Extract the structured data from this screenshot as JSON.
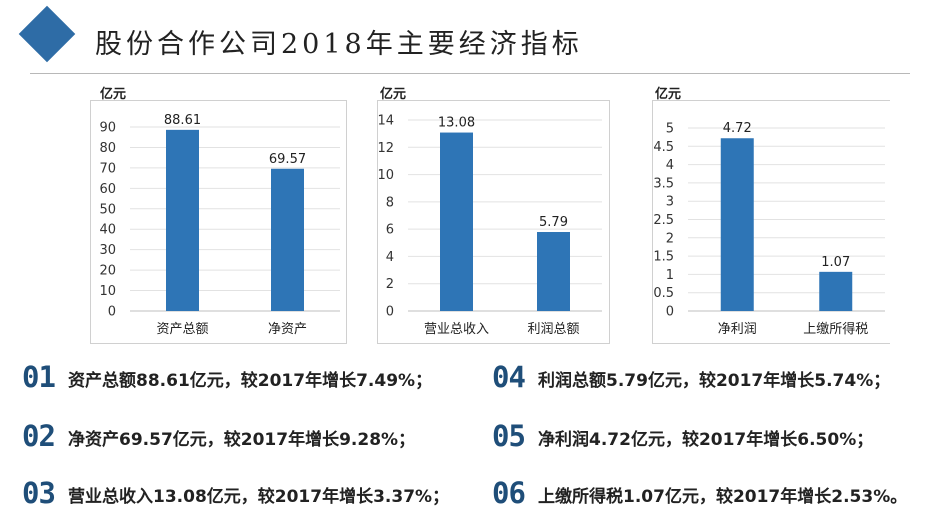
{
  "page": {
    "title": "股份合作公司2018年主要经济指标",
    "accent_color": "#2e6ca6",
    "number_color": "#1f4e79"
  },
  "chart_data": [
    {
      "type": "bar",
      "ylabel": "亿元",
      "categories": [
        "资产总额",
        "净资产"
      ],
      "values": [
        88.61,
        69.57
      ],
      "value_labels": [
        "88.61",
        "69.57"
      ],
      "ylim": [
        0,
        90
      ],
      "ticks": [
        0,
        10,
        20,
        30,
        40,
        50,
        60,
        70,
        80,
        90
      ],
      "tick_labels": [
        "0",
        "10",
        "20",
        "30",
        "40",
        "50",
        "60",
        "70",
        "80",
        "90"
      ],
      "bar_color": "#2e75b6",
      "grid": true
    },
    {
      "type": "bar",
      "ylabel": "亿元",
      "categories": [
        "营业总收入",
        "利润总额"
      ],
      "values": [
        13.08,
        5.79
      ],
      "value_labels": [
        "13.08",
        "5.79"
      ],
      "ylim": [
        0,
        14
      ],
      "ticks": [
        0,
        2,
        4,
        6,
        8,
        10,
        12,
        14
      ],
      "tick_labels": [
        "0",
        "2",
        "4",
        "6",
        "8",
        "10",
        "12",
        "14"
      ],
      "bar_color": "#2e75b6",
      "grid": true
    },
    {
      "type": "bar",
      "ylabel": "亿元",
      "categories": [
        "净利润",
        "上缴所得税"
      ],
      "values": [
        4.72,
        1.07
      ],
      "value_labels": [
        "4.72",
        "1.07"
      ],
      "ylim": [
        0,
        5
      ],
      "ticks": [
        0,
        0.5,
        1,
        1.5,
        2,
        2.5,
        3,
        3.5,
        4,
        4.5,
        5
      ],
      "tick_labels": [
        "0",
        "0.5",
        "1",
        "1.5",
        "2",
        "2.5",
        "3",
        "3.5",
        "4",
        "4.5",
        "5"
      ],
      "bar_color": "#2e75b6",
      "grid": true
    }
  ],
  "stats": [
    {
      "num": "01",
      "text": "资产总额88.61亿元，较2017年增长7.49%；"
    },
    {
      "num": "02",
      "text": "净资产69.57亿元，较2017年增长9.28%；"
    },
    {
      "num": "03",
      "text": "营业总收入13.08亿元，较2017年增长3.37%；"
    },
    {
      "num": "04",
      "text": "利润总额5.79亿元，较2017年增长5.74%；"
    },
    {
      "num": "05",
      "text": "净利润4.72亿元，较2017年增长6.50%；"
    },
    {
      "num": "06",
      "text": "上缴所得税1.07亿元，较2017年增长2.53%。"
    }
  ]
}
